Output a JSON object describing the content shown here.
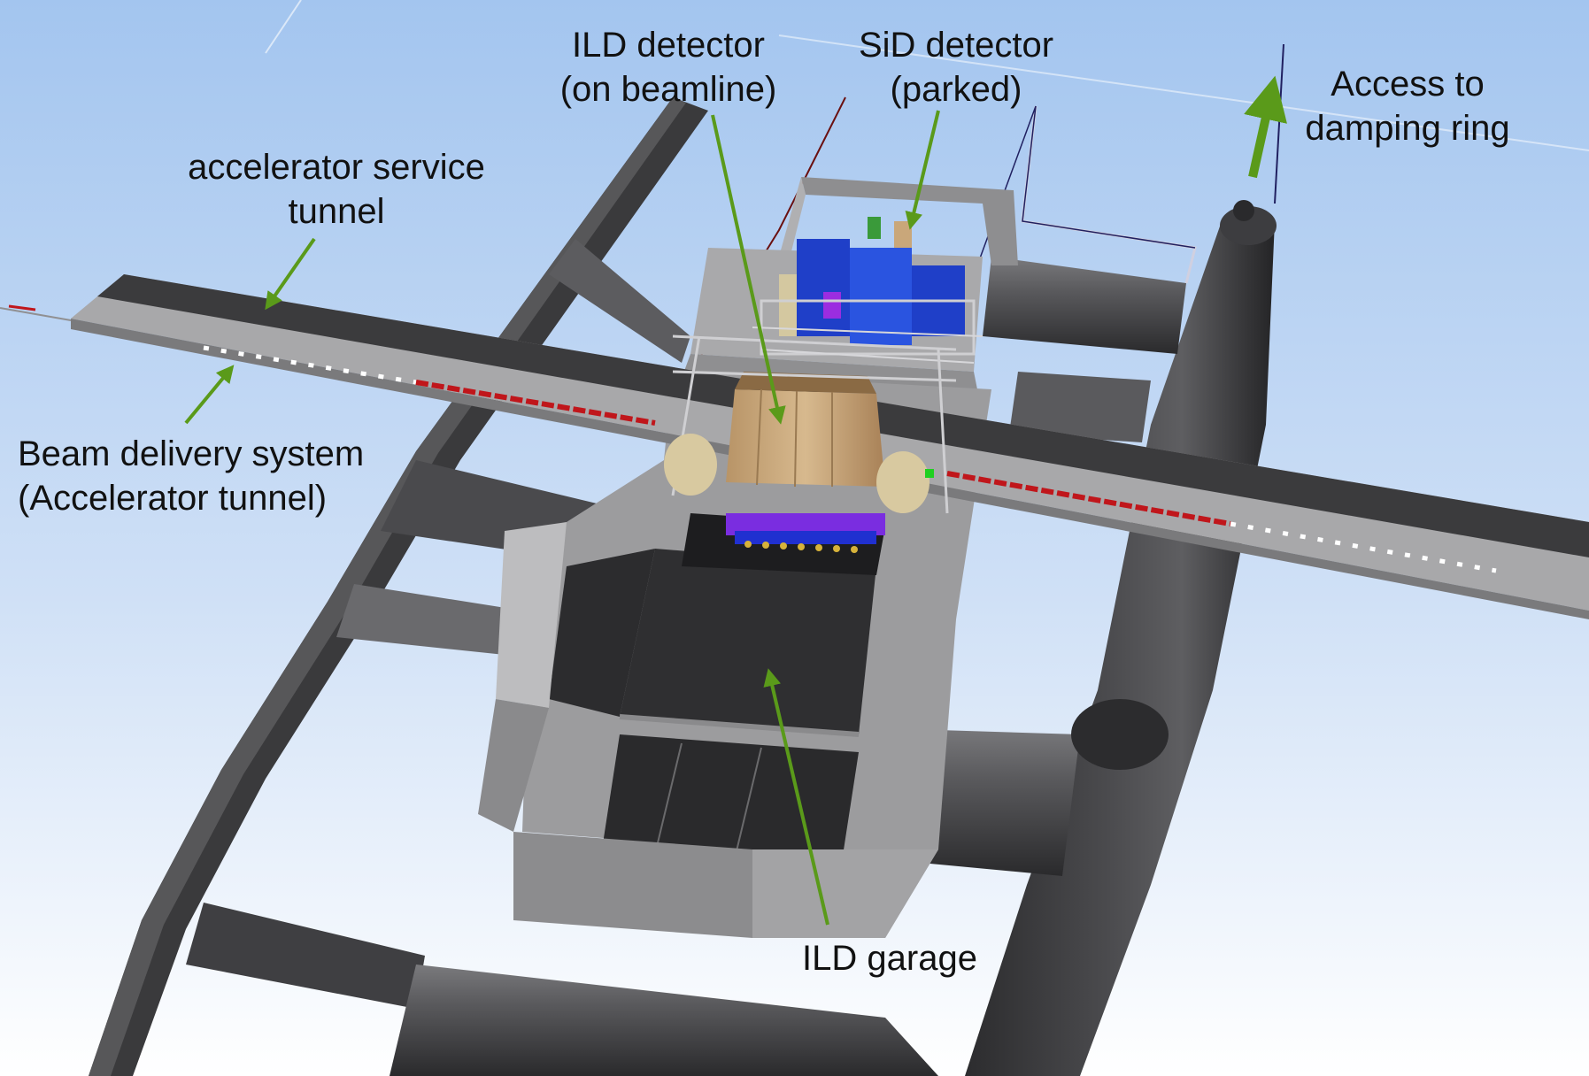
{
  "colors": {
    "sky_top": "#a9caf0",
    "sky_bottom": "#ffffff",
    "tunnel_dark": "#3a3a3c",
    "tunnel_mid": "#6e6e70",
    "concrete": "#a7a7a7",
    "concrete_dark": "#7d7d7d",
    "floor": "#2f2f31",
    "arrow_green": "#5a9a1a",
    "beam_red": "#c0161b",
    "ild_tan": "#c9a77a",
    "sid_blue": "#1f3fc8",
    "magenta": "#9b2de0"
  },
  "labels": {
    "ild_detector": [
      "ILD detector",
      "(on beamline)"
    ],
    "sid_detector": [
      "SiD detector",
      "(parked)"
    ],
    "access_damping_ring": [
      "Access to",
      "damping ring"
    ],
    "accelerator_service_tunnel": [
      "accelerator service",
      "tunnel"
    ],
    "beam_delivery_system": [
      "Beam delivery system",
      "(Accelerator tunnel)"
    ],
    "ild_garage": [
      "ILD garage"
    ]
  },
  "icons": {
    "pointer": "arrow-icon"
  }
}
